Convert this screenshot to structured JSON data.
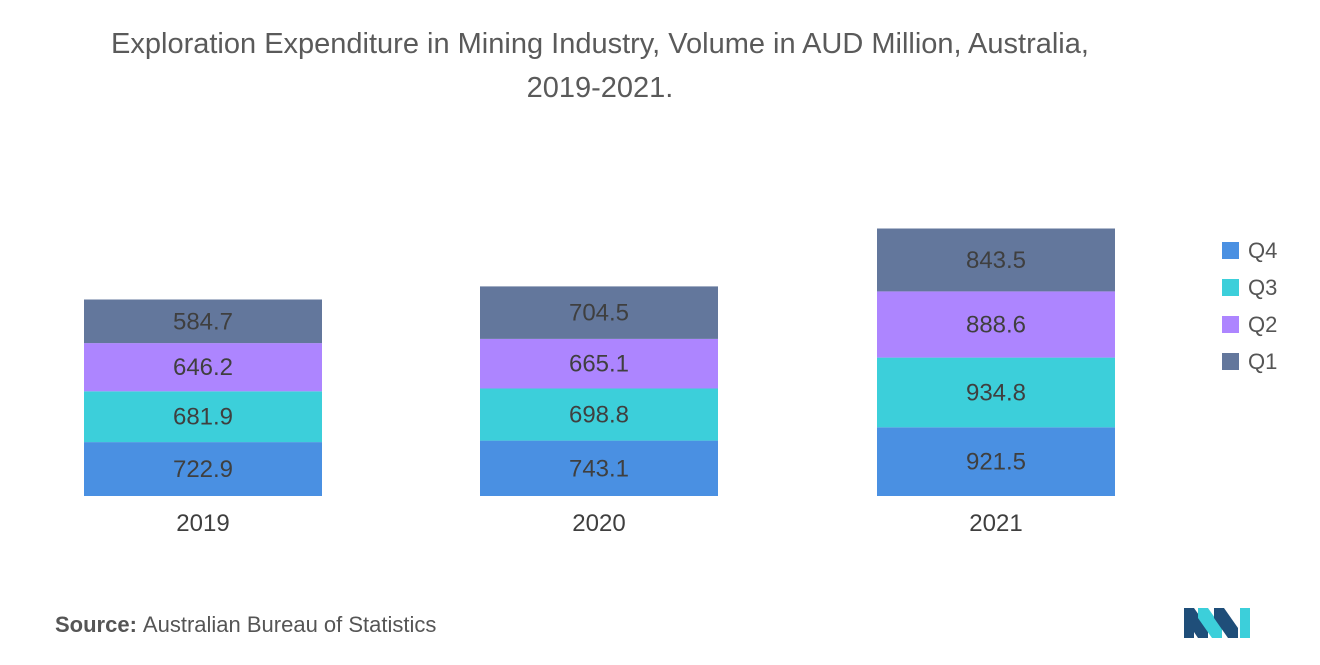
{
  "title": {
    "line1": "Exploration Expenditure in Mining Industry, Volume in AUD Million, Australia,",
    "line2": "2019-2021."
  },
  "chart_data": {
    "type": "bar",
    "stacked": true,
    "categories": [
      "2019",
      "2020",
      "2021"
    ],
    "series": [
      {
        "name": "Q4",
        "color": "#4a90e2",
        "values": [
          722.9,
          743.1,
          921.5
        ]
      },
      {
        "name": "Q3",
        "color": "#3ccfda",
        "values": [
          681.9,
          698.8,
          934.8
        ]
      },
      {
        "name": "Q2",
        "color": "#ad85ff",
        "values": [
          646.2,
          665.1,
          888.6
        ]
      },
      {
        "name": "Q1",
        "color": "#63779c",
        "values": [
          584.7,
          704.5,
          843.5
        ]
      }
    ],
    "legend_order": [
      "Q4",
      "Q3",
      "Q2",
      "Q1"
    ],
    "legend_position": "right",
    "grid": false,
    "y_axis_visible": false
  },
  "source": {
    "label": "Source:",
    "text": "Australian Bureau of Statistics"
  },
  "logo": {
    "name": "mordor-intelligence-logo",
    "colors": [
      "#1f4e79",
      "#3ccfda"
    ]
  }
}
